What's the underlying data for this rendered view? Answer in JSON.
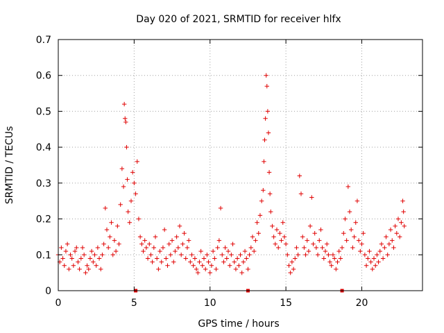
{
  "chart_data": {
    "type": "scatter",
    "title": "Day 020 of 2021, SRMTID for receiver hlfx",
    "xlabel": "GPS time / hours",
    "ylabel": "SRMTID / TECUs",
    "xlim": [
      0,
      24
    ],
    "ylim": [
      0,
      0.7
    ],
    "x_ticks": [
      0,
      5,
      10,
      15,
      20
    ],
    "x_tick_labels": [
      "0",
      "5",
      "10",
      "15",
      "20"
    ],
    "y_ticks": [
      0,
      0.1,
      0.2,
      0.3,
      0.4,
      0.5,
      0.6,
      0.7
    ],
    "y_tick_labels": [
      "0",
      "0.1",
      "0.2",
      "0.3",
      "0.4",
      "0.5",
      "0.6",
      "0.7"
    ],
    "grid": true,
    "marker": "+",
    "color": "#e00000",
    "gap_markers_x": [
      5.1,
      12.5,
      18.7
    ],
    "series": [
      {
        "name": "SRMTID",
        "points": [
          [
            0.0,
            0.1
          ],
          [
            0.1,
            0.08
          ],
          [
            0.2,
            0.12
          ],
          [
            0.3,
            0.09
          ],
          [
            0.4,
            0.07
          ],
          [
            0.5,
            0.11
          ],
          [
            0.6,
            0.13
          ],
          [
            0.7,
            0.06
          ],
          [
            0.8,
            0.1
          ],
          [
            0.9,
            0.09
          ],
          [
            1.0,
            0.07
          ],
          [
            1.1,
            0.11
          ],
          [
            1.2,
            0.12
          ],
          [
            1.3,
            0.08
          ],
          [
            1.4,
            0.06
          ],
          [
            1.5,
            0.09
          ],
          [
            1.6,
            0.12
          ],
          [
            1.7,
            0.1
          ],
          [
            1.8,
            0.05
          ],
          [
            1.9,
            0.07
          ],
          [
            2.0,
            0.06
          ],
          [
            2.1,
            0.09
          ],
          [
            2.2,
            0.11
          ],
          [
            2.3,
            0.08
          ],
          [
            2.4,
            0.1
          ],
          [
            2.5,
            0.07
          ],
          [
            2.6,
            0.12
          ],
          [
            2.7,
            0.09
          ],
          [
            2.8,
            0.06
          ],
          [
            2.9,
            0.1
          ],
          [
            3.0,
            0.13
          ],
          [
            3.1,
            0.23
          ],
          [
            3.2,
            0.17
          ],
          [
            3.3,
            0.12
          ],
          [
            3.4,
            0.15
          ],
          [
            3.5,
            0.19
          ],
          [
            3.6,
            0.1
          ],
          [
            3.7,
            0.14
          ],
          [
            3.8,
            0.11
          ],
          [
            3.9,
            0.18
          ],
          [
            4.0,
            0.13
          ],
          [
            4.1,
            0.24
          ],
          [
            4.2,
            0.34
          ],
          [
            4.3,
            0.29
          ],
          [
            4.35,
            0.52
          ],
          [
            4.4,
            0.48
          ],
          [
            4.45,
            0.47
          ],
          [
            4.5,
            0.4
          ],
          [
            4.55,
            0.31
          ],
          [
            4.6,
            0.22
          ],
          [
            4.7,
            0.19
          ],
          [
            4.8,
            0.25
          ],
          [
            4.9,
            0.33
          ],
          [
            5.0,
            0.3
          ],
          [
            5.1,
            0.27
          ],
          [
            5.2,
            0.36
          ],
          [
            5.3,
            0.2
          ],
          [
            5.4,
            0.15
          ],
          [
            5.5,
            0.13
          ],
          [
            5.6,
            0.11
          ],
          [
            5.7,
            0.14
          ],
          [
            5.8,
            0.12
          ],
          [
            5.9,
            0.09
          ],
          [
            6.0,
            0.13
          ],
          [
            6.1,
            0.1
          ],
          [
            6.2,
            0.08
          ],
          [
            6.3,
            0.12
          ],
          [
            6.4,
            0.15
          ],
          [
            6.5,
            0.09
          ],
          [
            6.6,
            0.06
          ],
          [
            6.7,
            0.11
          ],
          [
            6.8,
            0.08
          ],
          [
            6.9,
            0.12
          ],
          [
            7.0,
            0.17
          ],
          [
            7.1,
            0.09
          ],
          [
            7.2,
            0.07
          ],
          [
            7.3,
            0.13
          ],
          [
            7.4,
            0.1
          ],
          [
            7.5,
            0.14
          ],
          [
            7.6,
            0.08
          ],
          [
            7.7,
            0.11
          ],
          [
            7.8,
            0.15
          ],
          [
            7.9,
            0.12
          ],
          [
            8.0,
            0.18
          ],
          [
            8.1,
            0.1
          ],
          [
            8.2,
            0.13
          ],
          [
            8.3,
            0.16
          ],
          [
            8.4,
            0.09
          ],
          [
            8.5,
            0.12
          ],
          [
            8.6,
            0.14
          ],
          [
            8.7,
            0.08
          ],
          [
            8.8,
            0.1
          ],
          [
            8.9,
            0.07
          ],
          [
            9.0,
            0.09
          ],
          [
            9.1,
            0.06
          ],
          [
            9.2,
            0.05
          ],
          [
            9.3,
            0.08
          ],
          [
            9.4,
            0.11
          ],
          [
            9.5,
            0.07
          ],
          [
            9.6,
            0.09
          ],
          [
            9.7,
            0.06
          ],
          [
            9.8,
            0.1
          ],
          [
            9.9,
            0.08
          ],
          [
            10.0,
            0.05
          ],
          [
            10.1,
            0.07
          ],
          [
            10.2,
            0.11
          ],
          [
            10.3,
            0.09
          ],
          [
            10.4,
            0.06
          ],
          [
            10.5,
            0.12
          ],
          [
            10.6,
            0.14
          ],
          [
            10.7,
            0.23
          ],
          [
            10.8,
            0.1
          ],
          [
            10.9,
            0.08
          ],
          [
            11.0,
            0.12
          ],
          [
            11.1,
            0.09
          ],
          [
            11.2,
            0.11
          ],
          [
            11.3,
            0.07
          ],
          [
            11.4,
            0.1
          ],
          [
            11.5,
            0.13
          ],
          [
            11.6,
            0.08
          ],
          [
            11.7,
            0.06
          ],
          [
            11.8,
            0.09
          ],
          [
            11.9,
            0.07
          ],
          [
            12.0,
            0.1
          ],
          [
            12.1,
            0.05
          ],
          [
            12.2,
            0.08
          ],
          [
            12.3,
            0.11
          ],
          [
            12.4,
            0.09
          ],
          [
            12.5,
            0.06
          ],
          [
            12.6,
            0.1
          ],
          [
            12.7,
            0.12
          ],
          [
            12.8,
            0.15
          ],
          [
            12.9,
            0.11
          ],
          [
            13.0,
            0.14
          ],
          [
            13.1,
            0.19
          ],
          [
            13.2,
            0.16
          ],
          [
            13.3,
            0.21
          ],
          [
            13.4,
            0.25
          ],
          [
            13.5,
            0.28
          ],
          [
            13.55,
            0.36
          ],
          [
            13.6,
            0.42
          ],
          [
            13.65,
            0.48
          ],
          [
            13.7,
            0.6
          ],
          [
            13.75,
            0.57
          ],
          [
            13.8,
            0.5
          ],
          [
            13.85,
            0.44
          ],
          [
            13.9,
            0.33
          ],
          [
            13.95,
            0.27
          ],
          [
            14.0,
            0.22
          ],
          [
            14.1,
            0.18
          ],
          [
            14.2,
            0.15
          ],
          [
            14.3,
            0.13
          ],
          [
            14.4,
            0.17
          ],
          [
            14.5,
            0.12
          ],
          [
            14.6,
            0.16
          ],
          [
            14.7,
            0.14
          ],
          [
            14.8,
            0.19
          ],
          [
            14.9,
            0.15
          ],
          [
            15.0,
            0.13
          ],
          [
            15.1,
            0.1
          ],
          [
            15.2,
            0.07
          ],
          [
            15.3,
            0.05
          ],
          [
            15.4,
            0.08
          ],
          [
            15.5,
            0.06
          ],
          [
            15.6,
            0.09
          ],
          [
            15.7,
            0.12
          ],
          [
            15.8,
            0.1
          ],
          [
            15.9,
            0.32
          ],
          [
            16.0,
            0.27
          ],
          [
            16.1,
            0.15
          ],
          [
            16.2,
            0.12
          ],
          [
            16.3,
            0.1
          ],
          [
            16.4,
            0.14
          ],
          [
            16.5,
            0.11
          ],
          [
            16.6,
            0.18
          ],
          [
            16.7,
            0.26
          ],
          [
            16.8,
            0.13
          ],
          [
            16.9,
            0.16
          ],
          [
            17.0,
            0.12
          ],
          [
            17.1,
            0.1
          ],
          [
            17.2,
            0.14
          ],
          [
            17.3,
            0.17
          ],
          [
            17.4,
            0.12
          ],
          [
            17.5,
            0.09
          ],
          [
            17.6,
            0.11
          ],
          [
            17.7,
            0.13
          ],
          [
            17.8,
            0.1
          ],
          [
            17.9,
            0.08
          ],
          [
            18.0,
            0.07
          ],
          [
            18.1,
            0.1
          ],
          [
            18.2,
            0.09
          ],
          [
            18.3,
            0.06
          ],
          [
            18.4,
            0.08
          ],
          [
            18.5,
            0.11
          ],
          [
            18.6,
            0.09
          ],
          [
            18.7,
            0.12
          ],
          [
            18.8,
            0.16
          ],
          [
            18.9,
            0.2
          ],
          [
            19.0,
            0.14
          ],
          [
            19.1,
            0.29
          ],
          [
            19.2,
            0.22
          ],
          [
            19.3,
            0.17
          ],
          [
            19.4,
            0.12
          ],
          [
            19.5,
            0.15
          ],
          [
            19.6,
            0.19
          ],
          [
            19.7,
            0.25
          ],
          [
            19.8,
            0.14
          ],
          [
            19.9,
            0.11
          ],
          [
            20.0,
            0.13
          ],
          [
            20.1,
            0.16
          ],
          [
            20.2,
            0.1
          ],
          [
            20.3,
            0.07
          ],
          [
            20.4,
            0.09
          ],
          [
            20.5,
            0.11
          ],
          [
            20.6,
            0.08
          ],
          [
            20.7,
            0.06
          ],
          [
            20.8,
            0.09
          ],
          [
            20.9,
            0.07
          ],
          [
            21.0,
            0.1
          ],
          [
            21.1,
            0.08
          ],
          [
            21.2,
            0.11
          ],
          [
            21.3,
            0.13
          ],
          [
            21.4,
            0.09
          ],
          [
            21.5,
            0.12
          ],
          [
            21.6,
            0.15
          ],
          [
            21.7,
            0.1
          ],
          [
            21.8,
            0.13
          ],
          [
            21.9,
            0.17
          ],
          [
            22.0,
            0.14
          ],
          [
            22.1,
            0.12
          ],
          [
            22.2,
            0.18
          ],
          [
            22.3,
            0.16
          ],
          [
            22.4,
            0.2
          ],
          [
            22.5,
            0.15
          ],
          [
            22.6,
            0.19
          ],
          [
            22.7,
            0.25
          ],
          [
            22.75,
            0.22
          ],
          [
            22.8,
            0.18
          ]
        ]
      }
    ]
  }
}
